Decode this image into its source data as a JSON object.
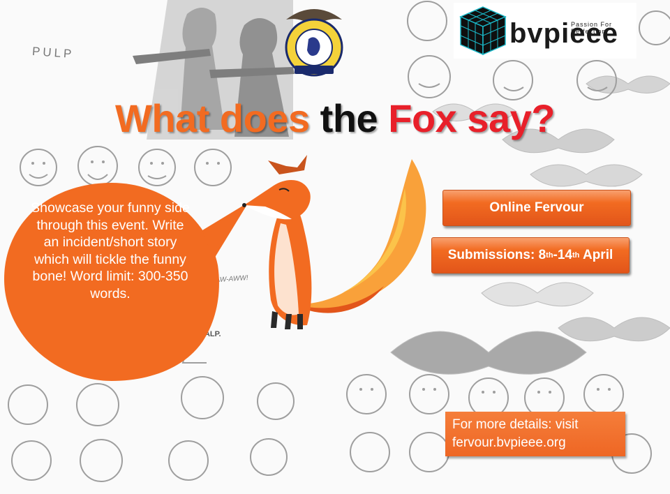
{
  "headline": {
    "part1": "What does ",
    "part2": "the ",
    "part3": "Fox say?"
  },
  "bubble": {
    "text": "Showcase your funny side through this event. Write an incident/short story which will tickle the funny bone! Word limit: 300-350 words."
  },
  "buttons": {
    "online": "Online Fervour",
    "submissions_prefix": "Submissions: 8",
    "submissions_sup1": "th",
    "submissions_mid": "-14",
    "submissions_sup2": "th",
    "submissions_suffix": " April"
  },
  "details": {
    "line1": "For more details: visit",
    "line2": "fervour.bvpieee.org"
  },
  "logos": {
    "bvp_name": "bvpieee",
    "bvp_tagline": "Passion For Perfection"
  },
  "background_text": {
    "pulp": "PULP",
    "halp": "HALP.",
    "aww": "-AWW-AAW-AWW!"
  },
  "colors": {
    "orange": "#f26b21",
    "red": "#e8202a",
    "black": "#111111"
  }
}
